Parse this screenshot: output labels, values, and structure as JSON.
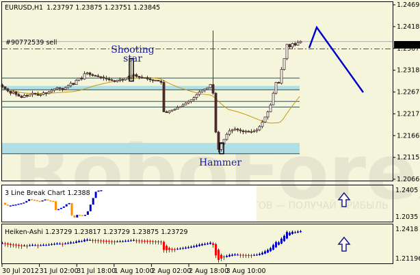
{
  "header": {
    "symbol": "EURUSD,H1",
    "ohlc": "1.23797 1.23875 1.23751 1.23845"
  },
  "order_label": "#90772539 sell",
  "current_price": "1.23845",
  "annotations": {
    "shooting_star_line1": "Shooting",
    "shooting_star_line2": "star",
    "hammer": "Hammer"
  },
  "watermark": "RoboForex",
  "watermark_slogan": "ИСПОЛЬЗУЙ РОБОТОВ — ПОЛУЧАЙ ПРИБЫЛЬ",
  "colors": {
    "background": "#f5f5dc",
    "candle": "#4a2a2a",
    "forecast": "#0000cc",
    "sell_line": "#008000",
    "support_band": "#b0e0e6",
    "ma": "#c8960a",
    "up": "#0000cc",
    "down_ha": "#ff0000",
    "down_lb": "#ff8c00"
  },
  "price_axis": [
    "1.24695",
    "1.24185",
    "1.23675",
    "1.23180",
    "1.22670",
    "1.22175",
    "1.21665",
    "1.21155",
    "1.20660"
  ],
  "lb_panel": {
    "title": "3 Line Break Chart 1.2388",
    "axis": [
      "1.2405",
      "1.2035"
    ],
    "signal": "arrow-up-icon"
  },
  "ha_panel": {
    "title": "Heiken-Ashi 1.23729 1.23817 1.23729 1.23875 1.23729",
    "axis": [
      "1.2418",
      "1.21196"
    ],
    "signal": "arrow-up-icon"
  },
  "time_axis": [
    "30 Jul 2012",
    "31 Jul 02:00",
    "31 Jul 18:00",
    "1 Aug 10:00",
    "2 Aug 02:00",
    "2 Aug 18:00",
    "3 Aug 10:00"
  ],
  "chart_data": {
    "type": "candlestick",
    "title": "EURUSD,H1",
    "ylim": [
      1.2066,
      1.24695
    ],
    "closes": [
      1.228,
      1.2275,
      1.227,
      1.2265,
      1.2268,
      1.2262,
      1.2258,
      1.2255,
      1.226,
      1.2258,
      1.2262,
      1.2265,
      1.2263,
      1.226,
      1.2262,
      1.2266,
      1.2264,
      1.2268,
      1.2272,
      1.2275,
      1.2278,
      1.2276,
      1.2274,
      1.2278,
      1.2282,
      1.2288,
      1.2285,
      1.2295,
      1.23,
      1.2298,
      1.231,
      1.2312,
      1.2308,
      1.2306,
      1.2305,
      1.2303,
      1.2302,
      1.23,
      1.2298,
      1.2296,
      1.2294,
      1.2292,
      1.2295,
      1.2297,
      1.2296,
      1.23,
      1.2302,
      1.2305,
      1.2308,
      1.2304,
      1.2302,
      1.23,
      1.2301,
      1.2298,
      1.2296,
      1.2294,
      1.2295,
      1.2293,
      1.229,
      1.2222,
      1.222,
      1.2224,
      1.2226,
      1.2228,
      1.2232,
      1.2234,
      1.2238,
      1.2242,
      1.2246,
      1.225,
      1.2255,
      1.2262,
      1.2268,
      1.2272,
      1.2275,
      1.2278,
      1.2285,
      1.2265,
      1.2175,
      1.2135,
      1.2148,
      1.2158,
      1.217,
      1.2178,
      1.218,
      1.2182,
      1.218,
      1.2178,
      1.2176,
      1.2177,
      1.2175,
      1.2176,
      1.2178,
      1.218,
      1.2188,
      1.2198,
      1.221,
      1.2222,
      1.2238,
      1.2265,
      1.229,
      1.2288,
      1.232,
      1.2345,
      1.2378,
      1.2372,
      1.238,
      1.2376,
      1.2382,
      1.2385
    ],
    "levels": [
      1.23,
      1.2273,
      1.2246,
      1.2233,
      1.2125
    ],
    "bands": [
      [
        1.2272,
        1.2282
      ],
      [
        1.2125,
        1.215
      ]
    ],
    "sell_order": 1.23675,
    "forecast": [
      [
        1.2373,
        "start"
      ],
      [
        1.242,
        "peak"
      ],
      [
        1.2267,
        "end"
      ]
    ]
  }
}
